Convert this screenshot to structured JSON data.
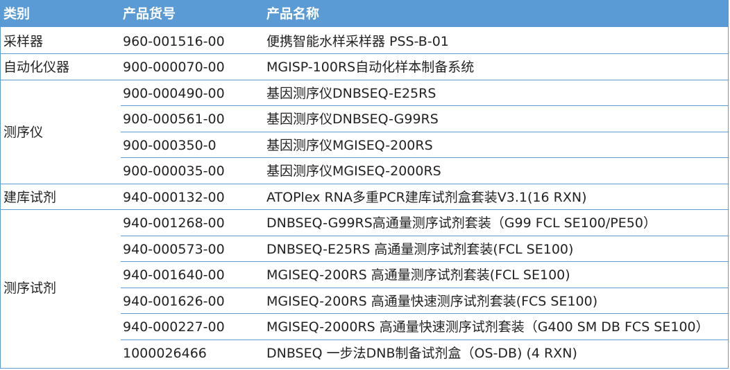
{
  "header": {
    "category": "类别",
    "code": "产品货号",
    "name": "产品名称"
  },
  "groups": [
    {
      "category": "采样器",
      "rows": [
        {
          "code": "960-001516-00",
          "name": "便携智能水样采样器 PSS-B-01"
        }
      ]
    },
    {
      "category": "自动化仪器",
      "rows": [
        {
          "code": "900-000070-00",
          "name": "MGISP-100RS自动化样本制备系统"
        }
      ]
    },
    {
      "category": "测序仪",
      "rows": [
        {
          "code": "900-000490-00",
          "name": "基因测序仪DNBSEQ-E25RS"
        },
        {
          "code": "900-000561-00",
          "name": "基因测序仪DNBSEQ-G99RS"
        },
        {
          "code": "900-000350-0",
          "name": "基因测序仪MGISEQ-200RS"
        },
        {
          "code": "900-000035-00",
          "name": "基因测序仪MGISEQ-2000RS"
        }
      ]
    },
    {
      "category": "建库试剂",
      "rows": [
        {
          "code": "940-000132-00",
          "name": "ATOPlex RNA多重PCR建库试剂盒套装V3.1(16 RXN)"
        }
      ]
    },
    {
      "category": "测序试剂",
      "rows": [
        {
          "code": "940-001268-00",
          "name": "DNBSEQ-G99RS高通量测序试剂套装（G99 FCL SE100/PE50）"
        },
        {
          "code": "940-000573-00",
          "name": "DNBSEQ-E25RS 高通量测序试剂套装(FCL SE100)"
        },
        {
          "code": "940-001640-00",
          "name": "MGISEQ-200RS 高通量测序试剂套装(FCL SE100)"
        },
        {
          "code": "940-001626-00",
          "name": "MGISEQ-200RS 高通量快速测序试剂套装(FCS SE100)"
        },
        {
          "code": "940-000227-00",
          "name": "MGISEQ-2000RS 高通量快速测序试剂套装（G400 SM DB FCS SE100）"
        },
        {
          "code": "1000026466",
          "name": "DNBSEQ 一步法DNB制备试剂盒（OS-DB) (4 RXN)"
        }
      ]
    }
  ],
  "colors": {
    "header_bg": "#5b9bd5",
    "border": "#5b9bd5",
    "header_text": "#ffffff",
    "body_text": "#222222"
  }
}
